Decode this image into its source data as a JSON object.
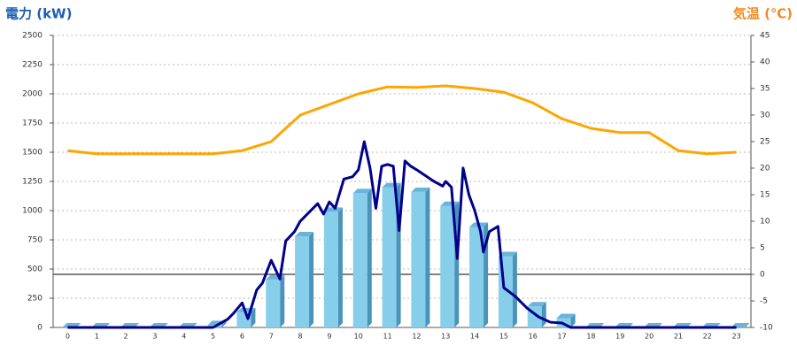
{
  "chart_data": {
    "type": "bar",
    "title": "電力 (kW)",
    "y2_title": "気温 (℃)",
    "categories": [
      "0",
      "1",
      "2",
      "3",
      "4",
      "5",
      "6",
      "7",
      "8",
      "9",
      "10",
      "11",
      "12",
      "13",
      "14",
      "15",
      "16",
      "17",
      "18",
      "19",
      "20",
      "21",
      "22",
      "23"
    ],
    "xlim": [
      -0.5,
      23.5
    ],
    "ylim": [
      0,
      2500
    ],
    "yticks": [
      0,
      250,
      500,
      750,
      1000,
      1250,
      1500,
      1750,
      2000,
      2250,
      2500
    ],
    "y2lim": [
      -10,
      45
    ],
    "y2ticks": [
      -10,
      -5,
      0,
      5,
      10,
      15,
      20,
      25,
      30,
      35,
      40,
      45
    ],
    "grid": true,
    "series": [
      {
        "type": "bar",
        "color": "#87ceeb",
        "values": [
          0,
          0,
          0,
          0,
          0,
          20,
          130,
          410,
          780,
          990,
          1150,
          1200,
          1160,
          1040,
          860,
          610,
          180,
          80,
          0,
          0,
          0,
          0,
          0,
          0
        ]
      },
      {
        "type": "line",
        "color": "#00008b",
        "x": [
          0,
          5.0,
          5.5,
          5.7,
          6.0,
          6.2,
          6.5,
          6.7,
          7.0,
          7.3,
          7.5,
          7.8,
          8.0,
          8.3,
          8.6,
          8.8,
          9.0,
          9.2,
          9.5,
          9.8,
          10.0,
          10.2,
          10.4,
          10.6,
          10.8,
          11.0,
          11.2,
          11.4,
          11.6,
          11.8,
          12.0,
          12.3,
          12.6,
          12.9,
          13.0,
          13.2,
          13.4,
          13.6,
          13.8,
          14.0,
          14.2,
          14.3,
          14.5,
          14.8,
          15.0,
          15.4,
          15.8,
          16.2,
          16.6,
          17.0,
          17.3,
          23.0
        ],
        "values": [
          0,
          0,
          70,
          120,
          210,
          75,
          320,
          380,
          575,
          415,
          740,
          820,
          910,
          985,
          1060,
          970,
          1075,
          1020,
          1270,
          1290,
          1350,
          1590,
          1365,
          1020,
          1380,
          1395,
          1380,
          830,
          1425,
          1380,
          1350,
          1300,
          1250,
          1210,
          1250,
          1200,
          590,
          1365,
          1135,
          1000,
          820,
          645,
          820,
          865,
          340,
          265,
          165,
          90,
          45,
          38,
          0,
          0
        ]
      },
      {
        "type": "line",
        "axis": "y2",
        "color": "#ffa500",
        "values": [
          23.3,
          22.7,
          22.7,
          22.7,
          22.7,
          22.7,
          23.3,
          25,
          30,
          32,
          34,
          35.3,
          35.2,
          35.5,
          35,
          34.3,
          32.3,
          29.3,
          27.5,
          26.7,
          26.7,
          23.3,
          22.7,
          23
        ]
      }
    ]
  }
}
